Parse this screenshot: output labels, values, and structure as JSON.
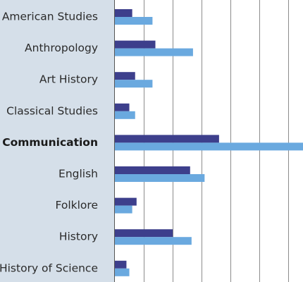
{
  "chart_data": {
    "type": "bar",
    "orientation": "horizontal",
    "categories": [
      "American Studies",
      "Anthropology",
      "Art History",
      "Classical Studies",
      "Communication",
      "English",
      "Folklore",
      "History",
      "History of Science"
    ],
    "highlighted_category": "Communication",
    "series": [
      {
        "color": "#3d3f8c",
        "values": [
          6,
          14,
          7,
          5,
          36,
          26,
          7.5,
          20,
          4
        ]
      },
      {
        "color": "#6aa9df",
        "values": [
          13,
          27,
          13,
          7,
          65,
          31,
          6,
          26.5,
          5
        ]
      }
    ],
    "xlim": [
      0,
      65
    ],
    "gridline_step": 10,
    "grid": true,
    "legend": "none",
    "colors": {
      "label_panel": "#d5dfe9",
      "gridline": "#8c8c8c",
      "axis": "#555555"
    }
  }
}
